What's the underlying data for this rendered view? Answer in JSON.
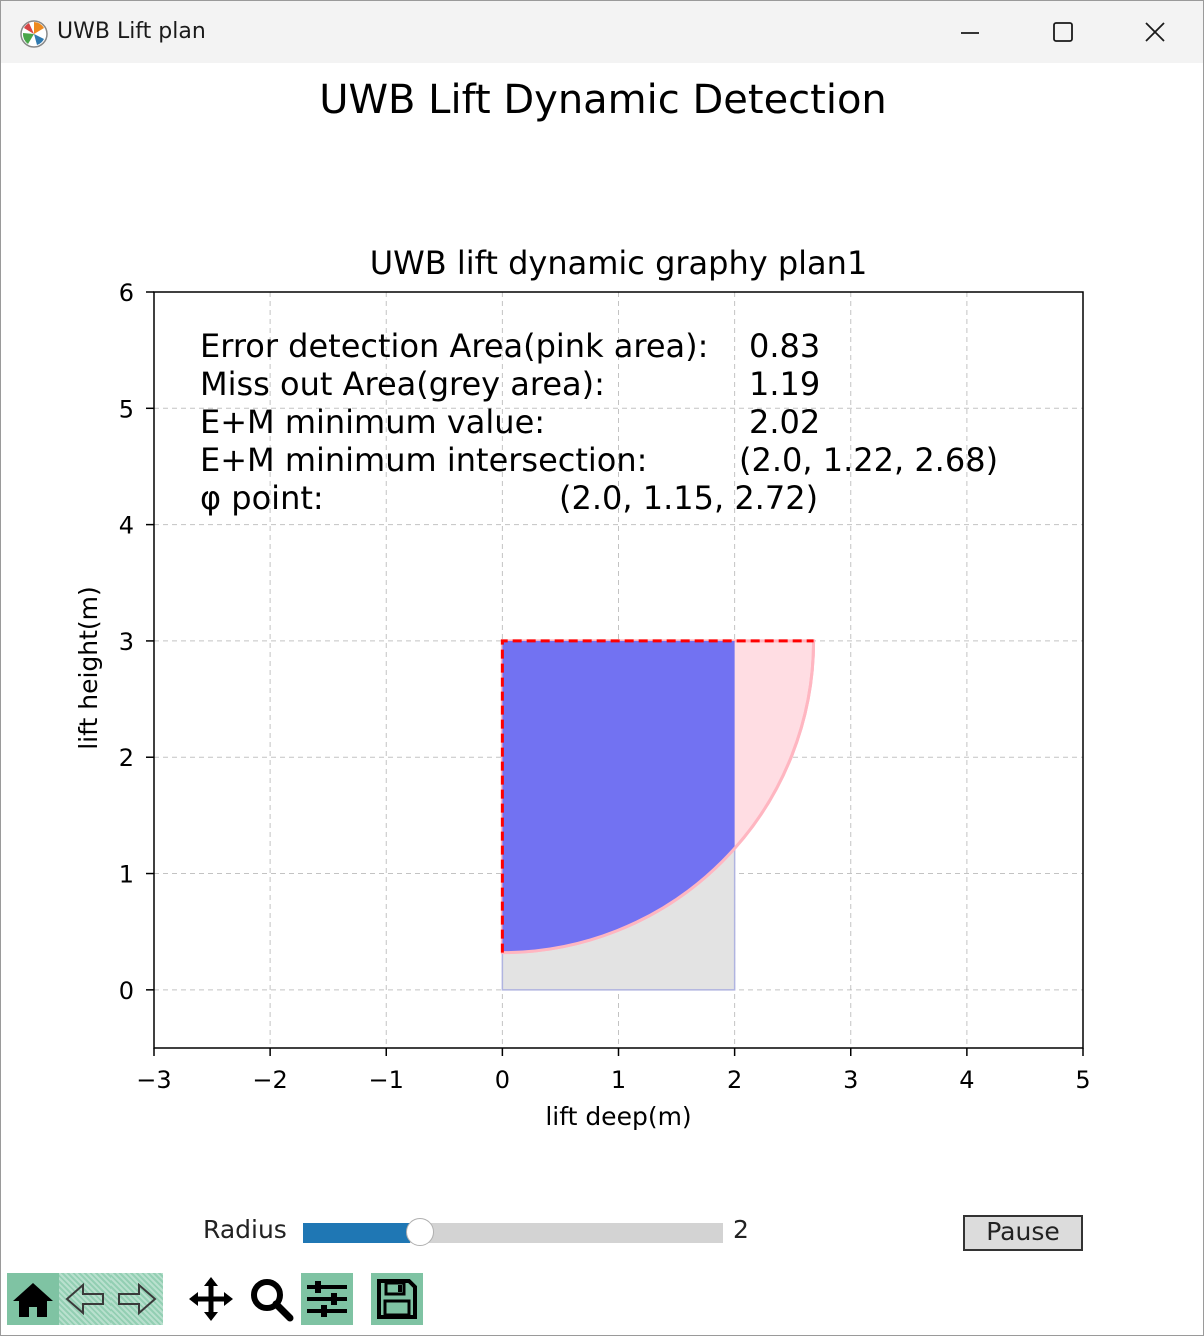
{
  "window": {
    "title": "UWB Lift plan",
    "app_icon": "matplotlib-icon",
    "controls": [
      "minimize-icon",
      "maximize-icon",
      "close-icon"
    ]
  },
  "figure": {
    "suptitle": "UWB Lift Dynamic Detection"
  },
  "chart_data": {
    "type": "area",
    "title": "UWB lift dynamic graphy plan1",
    "xlabel": "lift deep(m)",
    "ylabel": "lift height(m)",
    "xlim": [
      -3,
      5
    ],
    "ylim": [
      -0.5,
      6
    ],
    "xticks": [
      -3,
      -2,
      -1,
      0,
      1,
      2,
      3,
      4,
      5
    ],
    "xtick_labels": [
      "−3",
      "−2",
      "−1",
      "0",
      "1",
      "2",
      "3",
      "4",
      "5"
    ],
    "yticks": [
      0,
      1,
      2,
      3,
      4,
      5,
      6
    ],
    "ytick_labels": [
      "0",
      "1",
      "2",
      "3",
      "4",
      "5",
      "6"
    ],
    "grid": true,
    "lift_rect": {
      "x": [
        0,
        2
      ],
      "y": [
        0,
        3
      ],
      "fill": "#e3e3e3",
      "edge": "#b0b4e0"
    },
    "error_arc": {
      "center": [
        0,
        3
      ],
      "radius": 2.68,
      "fill": "#ffdde3",
      "edge": "#ffb6c1"
    },
    "overlap_fill": "#7272f2",
    "dashed_outline": {
      "points": [
        [
          0,
          0.32
        ],
        [
          0,
          3
        ],
        [
          2.68,
          3
        ]
      ],
      "color": "#ff0000"
    },
    "annotations": [
      {
        "label": "Error detection Area(pink area):",
        "value": "0.83"
      },
      {
        "label": "Miss out Area(grey area):",
        "value": "1.19"
      },
      {
        "label": "E+M minimum value:",
        "value": "2.02"
      },
      {
        "label": "E+M minimum intersection:",
        "value": "(2.0, 1.22, 2.68)"
      },
      {
        "label": "φ point:",
        "value": "(2.0, 1.15, 2.72)"
      }
    ],
    "colors": {
      "grid": "#b0b0b0",
      "axes": "#000000"
    }
  },
  "controls": {
    "slider_label": "Radius",
    "slider_value": "2",
    "slider_fraction": 0.255,
    "slider_color": "#1f77b4",
    "pause_label": "Pause"
  },
  "toolbar": {
    "tools": [
      "home-icon",
      "back-icon",
      "forward-icon",
      "pan-icon",
      "zoom-icon",
      "configure-subplots-icon",
      "save-icon"
    ],
    "accent": "#7fc3a3"
  }
}
